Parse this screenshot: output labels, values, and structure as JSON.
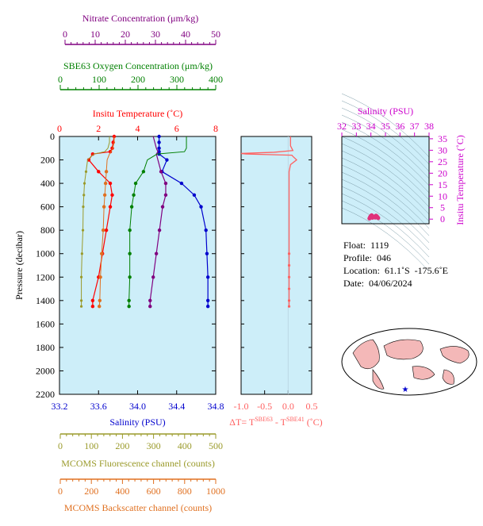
{
  "axes": {
    "nitrate": {
      "label": "Nitrate Concentration (μm/kg)",
      "ticks": [
        "0",
        "10",
        "20",
        "30",
        "40",
        "50"
      ],
      "range": [
        0,
        50
      ],
      "color": "#800080"
    },
    "oxygen": {
      "label": "SBE63 Oxygen Concentration (μm/kg)",
      "ticks": [
        "0",
        "100",
        "200",
        "300",
        "400"
      ],
      "range": [
        0,
        400
      ],
      "color": "#008000"
    },
    "temperature": {
      "label": "Insitu Temperature (˚C)",
      "ticks": [
        "0",
        "2",
        "4",
        "6",
        "8"
      ],
      "range": [
        0,
        8
      ],
      "color": "#ff0000"
    },
    "salinity": {
      "label": "Salinity (PSU)",
      "ticks": [
        "33.2",
        "33.6",
        "34.0",
        "34.4",
        "34.8"
      ],
      "range": [
        33.2,
        34.8
      ],
      "color": "#0000cd"
    },
    "pressure": {
      "label": "Pressure (decibar)",
      "ticks": [
        "0",
        "200",
        "400",
        "600",
        "800",
        "1000",
        "1200",
        "1400",
        "1600",
        "1800",
        "2000",
        "2200"
      ],
      "range": [
        0,
        2200
      ]
    },
    "fluorescence": {
      "label": "MCOMS Fluorescence channel (counts)",
      "ticks": [
        "0",
        "100",
        "200",
        "300",
        "400",
        "500"
      ],
      "range": [
        0,
        500
      ],
      "color": "#9a9a2a"
    },
    "backscatter": {
      "label": "MCOMS Backscatter channel (counts)",
      "ticks": [
        "0",
        "200",
        "400",
        "600",
        "800",
        "1000"
      ],
      "range": [
        0,
        1000
      ],
      "color": "#e07020"
    },
    "delta_t": {
      "label_prefix": "ΔT= T",
      "sup1": "SBE63",
      "mid": " - T",
      "sup2": "SBE41",
      "unit": " (˚C)",
      "ticks": [
        "-1.0",
        "-0.5",
        "0.0",
        "0.5"
      ],
      "range": [
        -1.0,
        0.5
      ],
      "color": "#ff6060"
    },
    "ts_salinity": {
      "label": "Salinity (PSU)",
      "ticks": [
        "32",
        "33",
        "34",
        "35",
        "36",
        "37",
        "38"
      ],
      "range": [
        32,
        38
      ],
      "color": "#cc00cc"
    },
    "ts_temperature": {
      "label": "Insitu Temperature (˚C)",
      "ticks": [
        "0",
        "5",
        "10",
        "15",
        "20",
        "25",
        "30",
        "35"
      ],
      "range": [
        -2,
        36
      ],
      "color": "#cc00cc"
    }
  },
  "info": {
    "float_label": "Float:",
    "float_value": "1119",
    "profile_label": "Profile:",
    "profile_value": "046",
    "location_label": "Location:",
    "location_value": "61.1˚S  -175.6˚E",
    "date_label": "Date:",
    "date_value": "04/06/2024"
  },
  "chart_data": [
    {
      "type": "line",
      "panel": "profiles",
      "pressure": [
        0,
        50,
        100,
        130,
        150,
        200,
        300,
        400,
        500,
        600,
        800,
        1000,
        1200,
        1400,
        1450
      ],
      "series": [
        {
          "name": "Insitu Temperature",
          "axis": "temperature",
          "color": "#ff0000",
          "values": [
            2.8,
            2.75,
            2.7,
            2.6,
            1.7,
            1.5,
            2.0,
            2.6,
            2.7,
            2.6,
            2.4,
            2.2,
            2.0,
            1.7,
            1.7
          ]
        },
        {
          "name": "Salinity",
          "axis": "salinity",
          "color": "#0000cd",
          "values": [
            34.22,
            34.22,
            34.22,
            34.22,
            34.22,
            34.3,
            34.25,
            34.45,
            34.58,
            34.65,
            34.7,
            34.71,
            34.72,
            34.72,
            34.72
          ]
        },
        {
          "name": "Nitrate",
          "axis": "nitrate",
          "color": "#800080",
          "values": [
            30,
            30.5,
            31,
            31.5,
            31,
            31.5,
            32.5,
            34,
            34,
            33,
            32,
            31,
            30,
            29,
            29
          ]
        },
        {
          "name": "Oxygen",
          "axis": "oxygen",
          "color": "#008000",
          "values": [
            325,
            325,
            325,
            320,
            250,
            225,
            215,
            195,
            190,
            185,
            180,
            180,
            180,
            178,
            178
          ]
        },
        {
          "name": "Fluorescence",
          "axis": "fluorescence",
          "color": "#9a9a2a",
          "values": [
            160,
            160,
            155,
            145,
            110,
            90,
            85,
            80,
            78,
            76,
            75,
            72,
            70,
            70,
            70
          ]
        },
        {
          "name": "Backscatter",
          "axis": "backscatter",
          "color": "#e07020",
          "values": [
            350,
            350,
            340,
            330,
            320,
            305,
            300,
            295,
            290,
            285,
            280,
            270,
            262,
            258,
            255
          ]
        }
      ]
    },
    {
      "type": "line",
      "panel": "delta_t",
      "pressure": [
        0,
        80,
        120,
        135,
        145,
        150,
        160,
        170,
        200,
        240,
        300,
        1000,
        1100,
        1200,
        1300,
        1400,
        1450
      ],
      "values": [
        0.05,
        0.05,
        0.1,
        -0.3,
        -1.0,
        -0.9,
        0.08,
        0.1,
        0.18,
        0.05,
        0.02,
        0.02,
        0.02,
        0.02,
        0.02,
        0.02,
        0.02
      ]
    },
    {
      "type": "scatter",
      "panel": "ts",
      "points": [
        [
          33.9,
          0.3
        ],
        [
          33.95,
          1.0
        ],
        [
          34.0,
          1.4
        ],
        [
          34.05,
          1.7
        ],
        [
          34.1,
          1.4
        ],
        [
          34.2,
          0.9
        ],
        [
          34.3,
          1.2
        ],
        [
          34.35,
          1.5
        ],
        [
          34.4,
          1.3
        ],
        [
          34.45,
          0.9
        ],
        [
          34.5,
          0.5
        ],
        [
          34.3,
          0.7
        ],
        [
          34.1,
          0.6
        ],
        [
          34.0,
          0.9
        ]
      ]
    }
  ]
}
